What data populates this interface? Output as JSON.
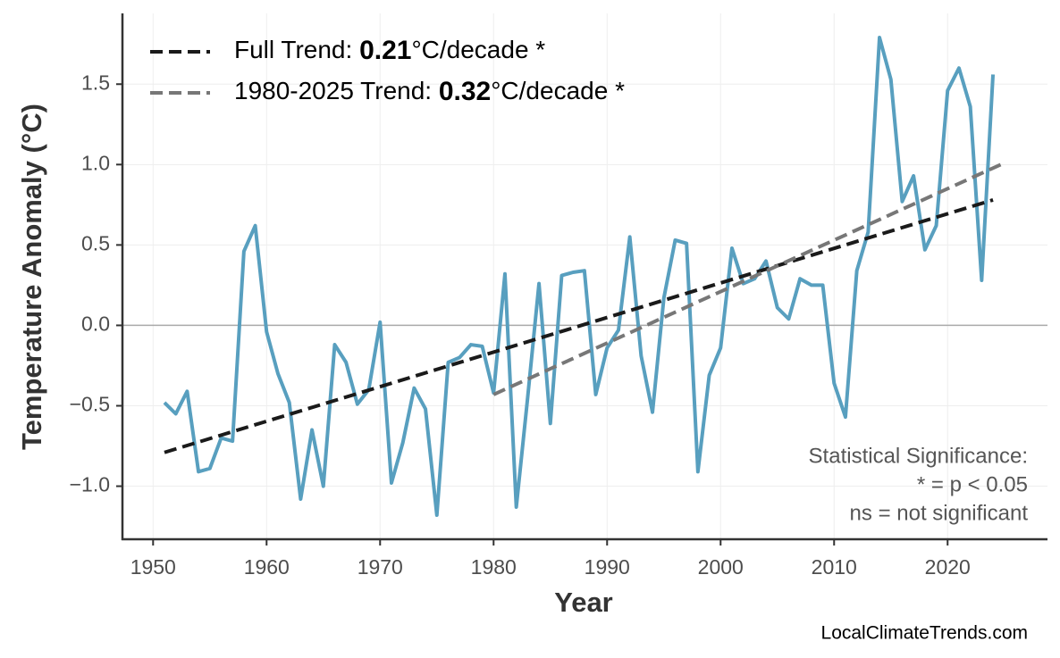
{
  "chart_data": {
    "type": "line",
    "xlabel": "Year",
    "ylabel": "Temperature Anomaly (°C)",
    "xlim": [
      1947.3,
      2028.8
    ],
    "ylim": [
      -1.33,
      1.94
    ],
    "xticks": [
      1950,
      1960,
      1970,
      1980,
      1990,
      2000,
      2010,
      2020
    ],
    "yticks": [
      {
        "value": -1,
        "label": "−1.0"
      },
      {
        "value": -0.5,
        "label": "−0.5"
      },
      {
        "value": 0,
        "label": "0.0"
      },
      0.5,
      {
        "value": 1,
        "label": "1.0"
      },
      1.5
    ],
    "grid": true,
    "hline": 0,
    "series": [
      {
        "color": "#589fbf",
        "dash": false,
        "x": [
          1951,
          1952,
          1953,
          1954,
          1955,
          1956,
          1957,
          1958,
          1959,
          1960,
          1961,
          1962,
          1963,
          1964,
          1965,
          1966,
          1967,
          1968,
          1969,
          1970,
          1971,
          1972,
          1973,
          1974,
          1975,
          1976,
          1977,
          1978,
          1979,
          1980,
          1981,
          1982,
          1983,
          1984,
          1985,
          1986,
          1987,
          1988,
          1989,
          1990,
          1991,
          1992,
          1993,
          1994,
          1995,
          1996,
          1997,
          1998,
          1999,
          2000,
          2001,
          2002,
          2003,
          2004,
          2005,
          2006,
          2007,
          2008,
          2009,
          2010,
          2011,
          2012,
          2013,
          2014,
          2015,
          2016,
          2017,
          2018,
          2019,
          2020,
          2021,
          2022,
          2023,
          2024
        ],
        "values": [
          -0.48,
          -0.55,
          -0.41,
          -0.91,
          -0.89,
          -0.7,
          -0.72,
          0.46,
          0.62,
          -0.04,
          -0.3,
          -0.48,
          -1.08,
          -0.65,
          -1.0,
          -0.12,
          -0.23,
          -0.49,
          -0.4,
          0.02,
          -0.98,
          -0.73,
          -0.39,
          -0.52,
          -1.18,
          -0.23,
          -0.2,
          -0.12,
          -0.13,
          -0.42,
          0.32,
          -1.13,
          -0.45,
          0.26,
          -0.61,
          0.31,
          0.33,
          0.34,
          -0.43,
          -0.14,
          -0.03,
          0.55,
          -0.19,
          -0.54,
          0.17,
          0.53,
          0.51,
          -0.91,
          -0.31,
          -0.14,
          0.48,
          0.26,
          0.29,
          0.4,
          0.11,
          0.04,
          0.29,
          0.25,
          0.25,
          -0.36,
          -0.57,
          0.34,
          0.58,
          1.79,
          1.53,
          0.77,
          0.93,
          0.47,
          0.62,
          1.46,
          1.6,
          1.36,
          0.28,
          1.56
        ]
      },
      {
        "name_parts": [
          "Full Trend: ",
          "0.21",
          "°C/decade *"
        ],
        "color": "#1a1a1a",
        "dash": true,
        "x": [
          1951,
          2024
        ],
        "values": [
          -0.79,
          0.78
        ]
      },
      {
        "name_parts": [
          "1980-2025 Trend: ",
          "0.32",
          "°C/decade *"
        ],
        "color": "#777777",
        "dash": true,
        "x": [
          1980,
          2025
        ],
        "values": [
          -0.43,
          1.01
        ]
      }
    ],
    "annotations": [
      "Statistical Significance:",
      "* = p < 0.05",
      "ns = not significant"
    ],
    "source": "LocalClimateTrends.com"
  }
}
